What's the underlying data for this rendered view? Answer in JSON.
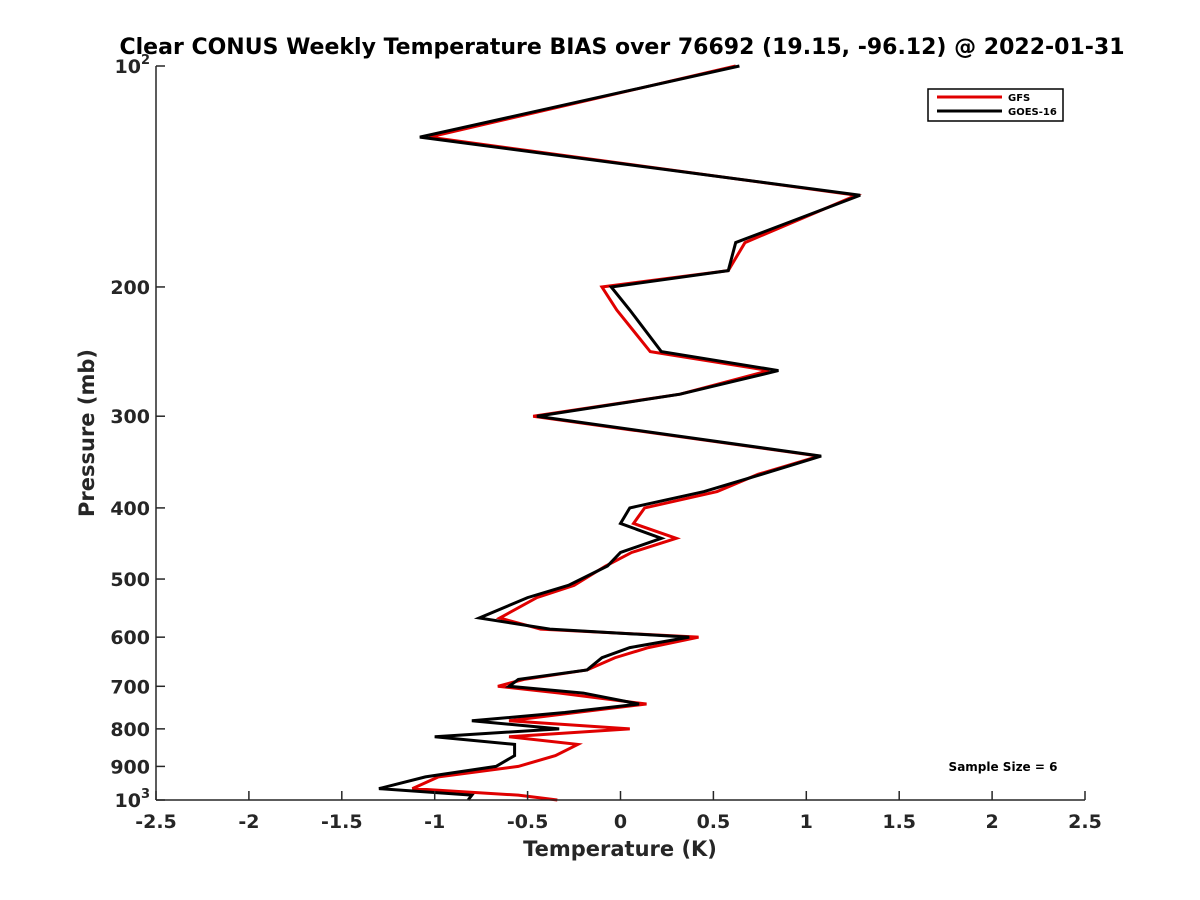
{
  "chart_data": {
    "type": "line",
    "title": "Clear CONUS Weekly Temperature BIAS over 76692 (19.15, -96.12) @ 2022-01-31",
    "xlabel": "Temperature (K)",
    "ylabel": "Pressure (mb)",
    "xlim": [
      -2.5,
      2.5
    ],
    "ylim": [
      1000,
      100
    ],
    "yscale": "log",
    "x_ticks": [
      -2.5,
      -2,
      -1.5,
      -1,
      -0.5,
      0,
      0.5,
      1,
      1.5,
      2,
      2.5
    ],
    "x_tick_labels": [
      "-2.5",
      "-2",
      "-1.5",
      "-1",
      "-0.5",
      "0",
      "0.5",
      "1",
      "1.5",
      "2",
      "2.5"
    ],
    "y_ticks": [
      100,
      200,
      300,
      400,
      500,
      600,
      700,
      800,
      900,
      1000
    ],
    "y_tick_labels": [
      {
        "base": "10",
        "exp": "2"
      },
      {
        "base": "200"
      },
      {
        "base": "300"
      },
      {
        "base": "400"
      },
      {
        "base": "500"
      },
      {
        "base": "600"
      },
      {
        "base": "700"
      },
      {
        "base": "800"
      },
      {
        "base": "900"
      },
      {
        "base": "10",
        "exp": "3"
      }
    ],
    "grid": false,
    "legend_position": "top-right",
    "annotation": "Sample Size = 6",
    "series": [
      {
        "name": "GFS",
        "color": "#e00000",
        "points": [
          [
            0.62,
            100
          ],
          [
            -1.03,
            125
          ],
          [
            1.27,
            150
          ],
          [
            0.67,
            174
          ],
          [
            0.58,
            190
          ],
          [
            -0.1,
            200
          ],
          [
            -0.02,
            215
          ],
          [
            0.16,
            245
          ],
          [
            0.8,
            260
          ],
          [
            0.32,
            280
          ],
          [
            -0.47,
            300
          ],
          [
            1.07,
            340
          ],
          [
            0.74,
            360
          ],
          [
            0.52,
            380
          ],
          [
            0.13,
            400
          ],
          [
            0.07,
            420
          ],
          [
            0.3,
            440
          ],
          [
            0.06,
            460
          ],
          [
            -0.08,
            480
          ],
          [
            -0.25,
            510
          ],
          [
            -0.45,
            530
          ],
          [
            -0.65,
            565
          ],
          [
            -0.43,
            585
          ],
          [
            0.42,
            600
          ],
          [
            0.15,
            620
          ],
          [
            -0.03,
            640
          ],
          [
            -0.18,
            665
          ],
          [
            -0.52,
            685
          ],
          [
            -0.66,
            700
          ],
          [
            -0.33,
            715
          ],
          [
            0.14,
            740
          ],
          [
            -0.24,
            760
          ],
          [
            -0.6,
            780
          ],
          [
            0.05,
            800
          ],
          [
            -0.6,
            820
          ],
          [
            -0.23,
            840
          ],
          [
            -0.35,
            870
          ],
          [
            -0.55,
            900
          ],
          [
            -0.98,
            930
          ],
          [
            -1.12,
            965
          ],
          [
            -0.55,
            985
          ],
          [
            -0.34,
            1000
          ]
        ]
      },
      {
        "name": "GOES-16",
        "color": "#000000",
        "points": [
          [
            0.64,
            100
          ],
          [
            -1.08,
            125
          ],
          [
            1.29,
            150
          ],
          [
            0.62,
            174
          ],
          [
            0.58,
            190
          ],
          [
            -0.05,
            200
          ],
          [
            0.05,
            215
          ],
          [
            0.22,
            245
          ],
          [
            0.85,
            260
          ],
          [
            0.32,
            280
          ],
          [
            -0.45,
            300
          ],
          [
            1.08,
            340
          ],
          [
            0.76,
            360
          ],
          [
            0.45,
            380
          ],
          [
            0.05,
            400
          ],
          [
            0.0,
            420
          ],
          [
            0.22,
            440
          ],
          [
            0.0,
            460
          ],
          [
            -0.07,
            480
          ],
          [
            -0.28,
            510
          ],
          [
            -0.5,
            530
          ],
          [
            -0.76,
            565
          ],
          [
            -0.38,
            585
          ],
          [
            0.37,
            600
          ],
          [
            0.05,
            620
          ],
          [
            -0.1,
            640
          ],
          [
            -0.18,
            665
          ],
          [
            -0.55,
            685
          ],
          [
            -0.6,
            700
          ],
          [
            -0.2,
            715
          ],
          [
            0.1,
            740
          ],
          [
            -0.3,
            760
          ],
          [
            -0.8,
            780
          ],
          [
            -0.33,
            800
          ],
          [
            -1.0,
            820
          ],
          [
            -0.57,
            840
          ],
          [
            -0.57,
            870
          ],
          [
            -0.67,
            900
          ],
          [
            -1.05,
            930
          ],
          [
            -1.3,
            965
          ],
          [
            -0.8,
            985
          ],
          [
            -0.82,
            1000
          ]
        ]
      }
    ]
  }
}
